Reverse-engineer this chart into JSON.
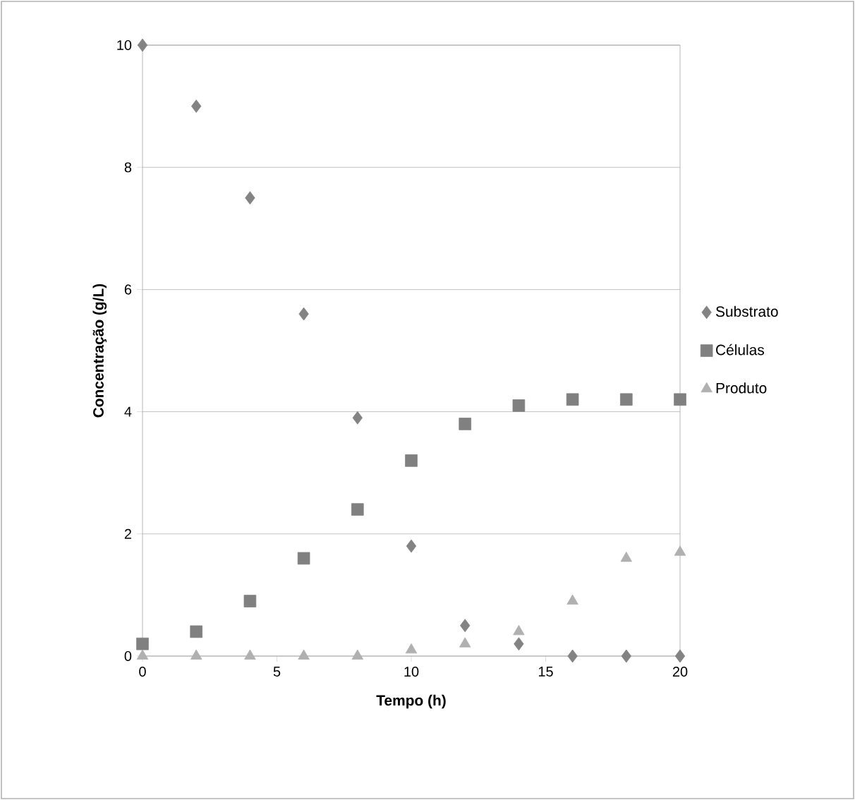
{
  "chart_data": {
    "type": "scatter",
    "xlabel": "Tempo (h)",
    "ylabel": "Concentração (g/L)",
    "x": [
      0,
      2,
      4,
      6,
      8,
      10,
      12,
      14,
      16,
      18,
      20
    ],
    "xlim": [
      0,
      20
    ],
    "xticks": [
      0,
      5,
      10,
      15,
      20
    ],
    "ylim": [
      0,
      10
    ],
    "yticks": [
      0,
      2,
      4,
      6,
      8,
      10
    ],
    "grid": "y",
    "legend": "right",
    "series": [
      {
        "name": "Substrato",
        "color": "#838383",
        "marker": "diamond",
        "values": [
          10,
          9.0,
          7.5,
          5.6,
          3.9,
          1.8,
          0.5,
          0.2,
          0,
          0,
          0
        ]
      },
      {
        "name": "Células",
        "color": "#808080",
        "marker": "square",
        "values": [
          0.2,
          0.4,
          0.9,
          1.6,
          2.4,
          3.2,
          3.8,
          4.1,
          4.2,
          4.2,
          4.2
        ]
      },
      {
        "name": "Produto",
        "color": "#b0b0b0",
        "marker": "triangle",
        "values": [
          0,
          0,
          0,
          0,
          0,
          0.1,
          0.2,
          0.4,
          0.9,
          1.6,
          1.7
        ]
      }
    ]
  }
}
